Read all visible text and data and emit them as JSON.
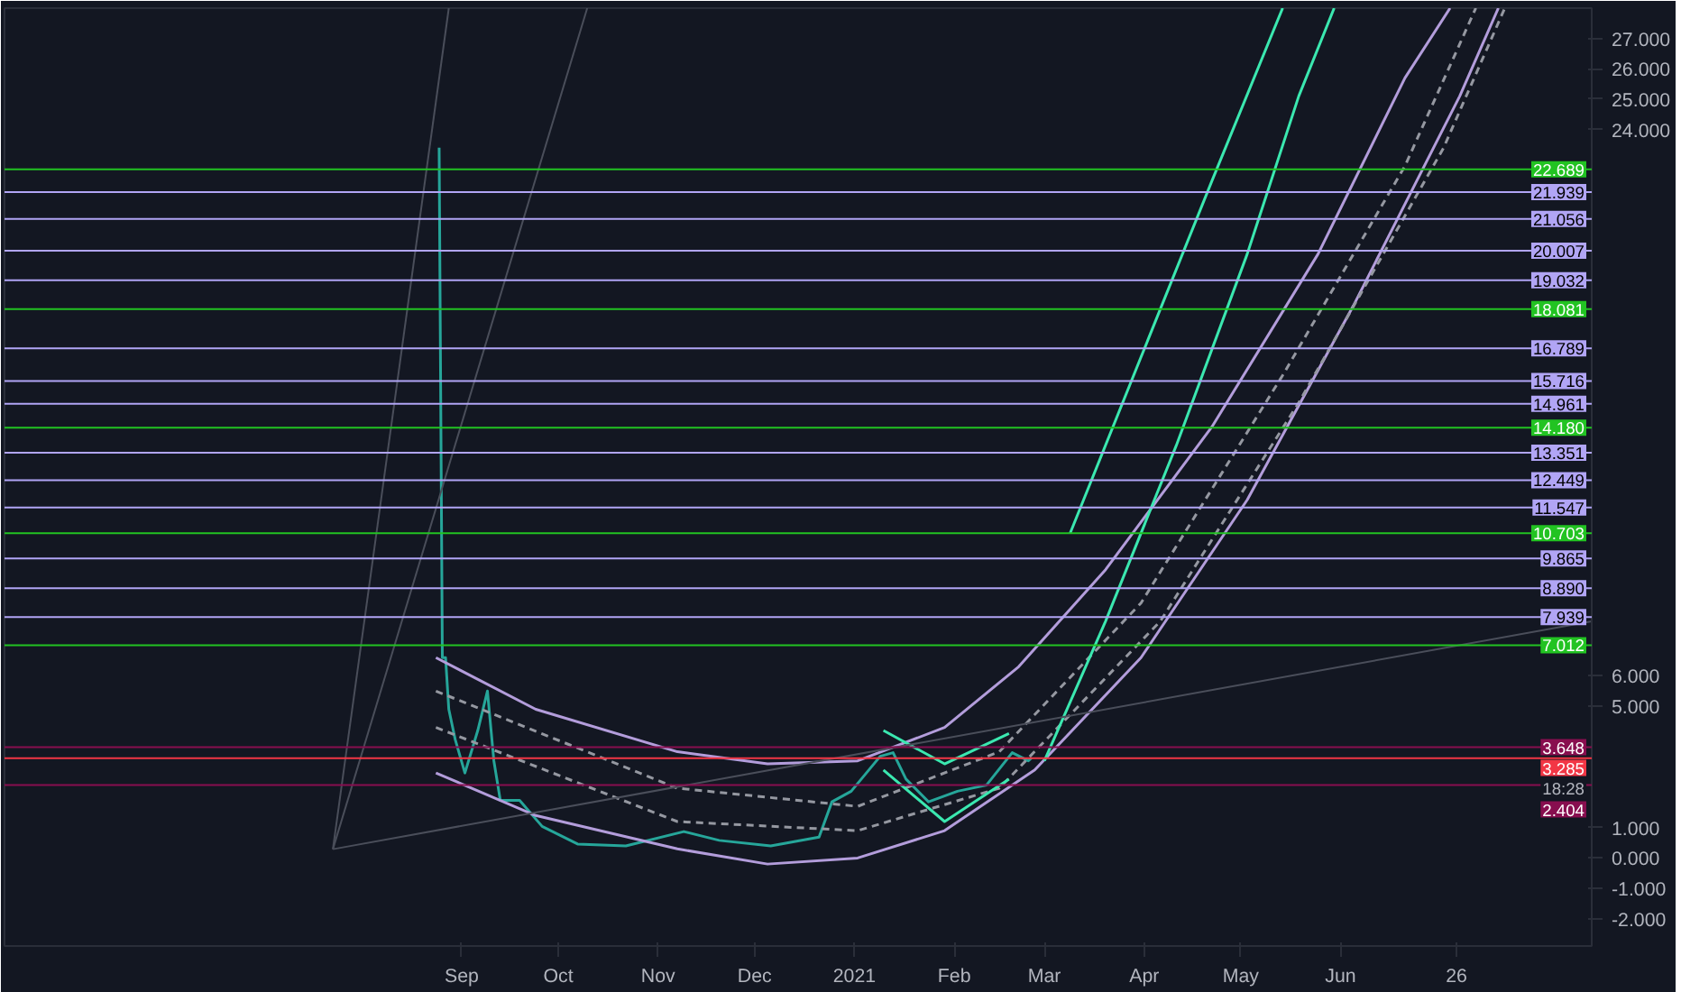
{
  "chart_data": {
    "type": "line",
    "xlim": [
      "2020-04-12",
      "2021-08-18"
    ],
    "ylim": [
      -2.9,
      28.0
    ],
    "xticks": [
      {
        "value": "2020-09-01",
        "label": "Sep"
      },
      {
        "value": "2020-10-01",
        "label": "Oct"
      },
      {
        "value": "2020-11-01",
        "label": "Nov"
      },
      {
        "value": "2020-12-01",
        "label": "Dec"
      },
      {
        "value": "2021-01-01",
        "label": "2021"
      },
      {
        "value": "2021-02-01",
        "label": "Feb"
      },
      {
        "value": "2021-03-01",
        "label": "Mar"
      },
      {
        "value": "2021-04-01",
        "label": "Apr"
      },
      {
        "value": "2021-05-01",
        "label": "May"
      },
      {
        "value": "2021-06-01",
        "label": "Jun"
      },
      {
        "value": "2021-07-07",
        "label": "26"
      }
    ],
    "yticks": [
      {
        "value": -2,
        "label": "-2.000"
      },
      {
        "value": -1,
        "label": "-1.000"
      },
      {
        "value": 0,
        "label": "0.000"
      },
      {
        "value": 1,
        "label": "1.000"
      },
      {
        "value": 5,
        "label": "5.000"
      },
      {
        "value": 6,
        "label": "6.000"
      },
      {
        "value": 24,
        "label": "24.000"
      },
      {
        "value": 25,
        "label": "25.000"
      },
      {
        "value": 26,
        "label": "26.000"
      },
      {
        "value": 27,
        "label": "27.000"
      }
    ],
    "grid": false,
    "series": [
      {
        "color": "#26a69a",
        "x": [
          "2020-08-25",
          "2020-08-26",
          "2020-08-27",
          "2020-08-28",
          "2020-08-30",
          "2020-09-02",
          "2020-09-06",
          "2020-09-09",
          "2020-09-11",
          "2020-09-13",
          "2020-09-19",
          "2020-09-26",
          "2020-10-07",
          "2020-10-22",
          "2020-11-09",
          "2020-11-20",
          "2020-12-06",
          "2020-12-21",
          "2020-12-25",
          "2020-12-31",
          "2021-01-09",
          "2021-01-13",
          "2021-01-17",
          "2021-01-24",
          "2021-02-02",
          "2021-02-11",
          "2021-02-19",
          "2021-02-24",
          "2021-02-25"
        ],
        "values": [
          23.4,
          6.6,
          6.6,
          4.9,
          3.9,
          2.8,
          4.2,
          5.5,
          3.2,
          1.9,
          1.9,
          1.04,
          0.46,
          0.4,
          0.87,
          0.58,
          0.4,
          0.69,
          1.85,
          2.2,
          3.35,
          3.47,
          2.6,
          1.85,
          2.2,
          2.4,
          3.47,
          3.2,
          3.3
        ]
      },
      {
        "color": "#b39ddb",
        "x": [
          "2020-08-24",
          "2020-09-24",
          "2020-11-07",
          "2020-12-05",
          "2021-01-02",
          "2021-01-29",
          "2021-02-21",
          "2021-03-20",
          "2021-04-22",
          "2021-05-25",
          "2021-06-21",
          "2021-07-05"
        ],
        "values": [
          6.6,
          4.9,
          3.5,
          3.1,
          3.2,
          4.3,
          6.3,
          9.5,
          14.2,
          19.9,
          25.7,
          28.0
        ]
      },
      {
        "color": "#b39ddb",
        "x": [
          "2020-08-24",
          "2020-09-24",
          "2020-11-07",
          "2020-12-05",
          "2021-01-02",
          "2021-01-29",
          "2021-02-26",
          "2021-03-31",
          "2021-05-03",
          "2021-06-05",
          "2021-07-08",
          "2021-07-20"
        ],
        "values": [
          2.8,
          1.4,
          0.3,
          -0.2,
          0.0,
          0.9,
          2.9,
          6.6,
          11.8,
          18.2,
          25.1,
          28.0
        ]
      },
      {
        "color": "#9598a1",
        "line_style": "dashed",
        "x": [
          "2020-08-24",
          "2020-11-07",
          "2021-01-02",
          "2021-02-15",
          "2021-03-31",
          "2021-05-14",
          "2021-06-21",
          "2021-07-13"
        ],
        "values": [
          5.5,
          2.3,
          1.7,
          3.5,
          8.4,
          15.9,
          22.8,
          28.0
        ]
      },
      {
        "color": "#9598a1",
        "line_style": "dashed",
        "x": [
          "2020-08-24",
          "2020-11-07",
          "2021-01-02",
          "2021-02-15",
          "2021-04-06",
          "2021-05-19",
          "2021-07-03",
          "2021-07-22"
        ],
        "values": [
          4.3,
          1.2,
          0.9,
          2.3,
          7.8,
          15.0,
          23.4,
          28.0
        ]
      },
      {
        "color": "#3be8b0",
        "x": [
          "2021-03-09",
          "2021-03-31",
          "2021-04-22",
          "2021-05-14"
        ],
        "values": [
          10.7,
          16.5,
          22.3,
          28.0
        ]
      },
      {
        "color": "#3be8b0",
        "x": [
          "2021-03-01",
          "2021-03-20",
          "2021-04-11",
          "2021-05-03",
          "2021-05-19",
          "2021-05-30"
        ],
        "values": [
          3.2,
          7.8,
          13.6,
          19.9,
          25.1,
          28.0
        ]
      },
      {
        "color": "#3be8b0",
        "x": [
          "2021-01-10",
          "2021-01-29",
          "2021-02-18"
        ],
        "values": [
          4.2,
          3.1,
          4.1
        ]
      },
      {
        "color": "#3be8b0",
        "x": [
          "2021-01-10",
          "2021-01-29",
          "2021-02-18"
        ],
        "values": [
          2.9,
          1.2,
          2.6
        ]
      },
      {
        "color": "#4a4e5a",
        "x": [
          "2020-07-23",
          "2020-08-28"
        ],
        "values": [
          0.29,
          28.0
        ]
      },
      {
        "color": "#4a4e5a",
        "x": [
          "2020-07-23",
          "2020-10-10"
        ],
        "values": [
          0.29,
          28.0
        ]
      },
      {
        "color": "#4a4e5a",
        "x": [
          "2020-07-23",
          "2021-08-18"
        ],
        "values": [
          0.29,
          7.8
        ]
      }
    ],
    "ref_lines": [
      {
        "axis": "y",
        "value": 22.689,
        "label": "22.689",
        "color": "#22c322"
      },
      {
        "axis": "y",
        "value": 21.939,
        "label": "21.939",
        "color": "#b1a5f5"
      },
      {
        "axis": "y",
        "value": 21.056,
        "label": "21.056",
        "color": "#b1a5f5"
      },
      {
        "axis": "y",
        "value": 20.007,
        "label": "20.007",
        "color": "#b1a5f5"
      },
      {
        "axis": "y",
        "value": 19.032,
        "label": "19.032",
        "color": "#b1a5f5"
      },
      {
        "axis": "y",
        "value": 18.081,
        "label": "18.081",
        "color": "#22c322"
      },
      {
        "axis": "y",
        "value": 16.789,
        "label": "16.789",
        "color": "#b1a5f5"
      },
      {
        "axis": "y",
        "value": 15.716,
        "label": "15.716",
        "color": "#b1a5f5"
      },
      {
        "axis": "y",
        "value": 14.961,
        "label": "14.961",
        "color": "#b1a5f5"
      },
      {
        "axis": "y",
        "value": 14.18,
        "label": "14.180",
        "color": "#22c322"
      },
      {
        "axis": "y",
        "value": 13.351,
        "label": "13.351",
        "color": "#b1a5f5"
      },
      {
        "axis": "y",
        "value": 12.449,
        "label": "12.449",
        "color": "#b1a5f5"
      },
      {
        "axis": "y",
        "value": 11.547,
        "label": "11.547",
        "color": "#b1a5f5"
      },
      {
        "axis": "y",
        "value": 10.703,
        "label": "10.703",
        "color": "#22c322"
      },
      {
        "axis": "y",
        "value": 9.865,
        "label": "9.865",
        "color": "#b1a5f5"
      },
      {
        "axis": "y",
        "value": 8.89,
        "label": "8.890",
        "color": "#b1a5f5"
      },
      {
        "axis": "y",
        "value": 7.939,
        "label": "7.939",
        "color": "#b1a5f5"
      },
      {
        "axis": "y",
        "value": 7.012,
        "label": "7.012",
        "color": "#22c322"
      },
      {
        "axis": "y",
        "value": 3.648,
        "label": "3.648",
        "color": "#880e4f"
      },
      {
        "axis": "y",
        "value": 3.285,
        "label": "3.285",
        "color": "#f23645"
      },
      {
        "axis": "y",
        "value": 2.404,
        "label": "2.404",
        "color": "#880e4f"
      }
    ],
    "annotations": [
      {
        "text": "18:28",
        "y": 3.285
      }
    ]
  }
}
